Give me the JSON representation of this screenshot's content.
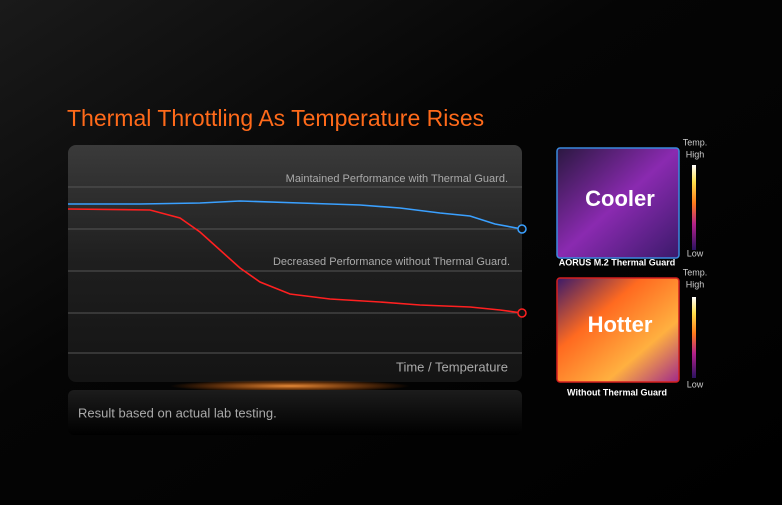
{
  "title": "Thermal Throttling As Temperature Rises",
  "chart": {
    "upper_label": "Maintained Performance with Thermal Guard.",
    "lower_label": "Decreased Performance without Thermal Guard.",
    "axis_label": "Time / Temperature",
    "footnote": "Result based on actual lab testing."
  },
  "panels": [
    {
      "label": "Cooler",
      "caption": "AORUS M.2 Thermal Guard",
      "scale_title": "Temp.",
      "scale_high": "High",
      "scale_low": "Low"
    },
    {
      "label": "Hotter",
      "caption": "Without Thermal Guard",
      "scale_title": "Temp.",
      "scale_high": "High",
      "scale_low": "Low"
    }
  ]
}
